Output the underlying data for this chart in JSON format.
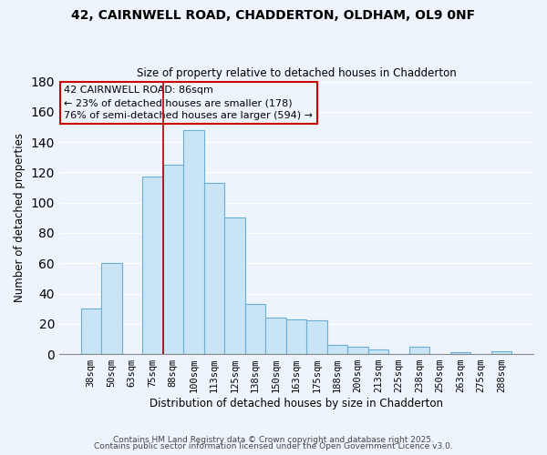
{
  "title": "42, CAIRNWELL ROAD, CHADDERTON, OLDHAM, OL9 0NF",
  "subtitle": "Size of property relative to detached houses in Chadderton",
  "xlabel": "Distribution of detached houses by size in Chadderton",
  "ylabel": "Number of detached properties",
  "bar_labels": [
    "38sqm",
    "50sqm",
    "63sqm",
    "75sqm",
    "88sqm",
    "100sqm",
    "113sqm",
    "125sqm",
    "138sqm",
    "150sqm",
    "163sqm",
    "175sqm",
    "188sqm",
    "200sqm",
    "213sqm",
    "225sqm",
    "238sqm",
    "250sqm",
    "263sqm",
    "275sqm",
    "288sqm"
  ],
  "bar_values": [
    30,
    60,
    0,
    117,
    125,
    148,
    113,
    90,
    33,
    24,
    23,
    22,
    6,
    5,
    3,
    0,
    5,
    0,
    1,
    0,
    2
  ],
  "bar_color": "#c9e4f5",
  "bar_edge_color": "#6aaed6",
  "bg_color": "#eef4fb",
  "grid_color": "#ffffff",
  "vline_x": 3.5,
  "vline_color": "#aa0000",
  "annotation_text_line1": "42 CAIRNWELL ROAD: 86sqm",
  "annotation_text_line2": "← 23% of detached houses are smaller (178)",
  "annotation_text_line3": "76% of semi-detached houses are larger (594) →",
  "annotation_box_edge": "#cc0000",
  "ylim": [
    0,
    180
  ],
  "yticks": [
    0,
    20,
    40,
    60,
    80,
    100,
    120,
    140,
    160,
    180
  ],
  "footer1": "Contains HM Land Registry data © Crown copyright and database right 2025.",
  "footer2": "Contains public sector information licensed under the Open Government Licence v3.0."
}
